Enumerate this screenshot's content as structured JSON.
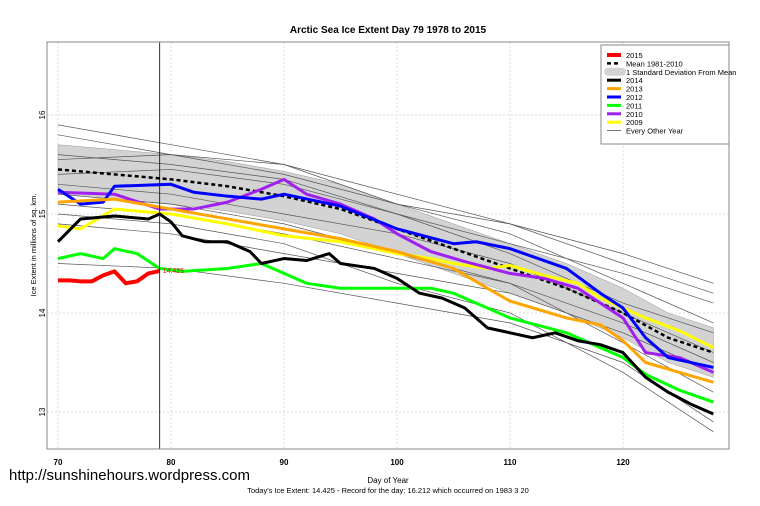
{
  "chart_data": {
    "type": "line",
    "title": "Arctic Sea Ice Extent Day 79 1978 to 2015",
    "xlabel": "Day of Year",
    "ylabel": "Ice Extent in millions of sq. km.",
    "subtitle": "Today's Ice Extent: 14.425  - Record for the day: 16.212 which occurred on 1983 3 20",
    "xlim": [
      69,
      129
    ],
    "ylim": [
      12.7,
      16.7
    ],
    "xticks": [
      70,
      80,
      90,
      100,
      110,
      120
    ],
    "yticks": [
      13,
      14,
      15,
      16
    ],
    "grid": true,
    "legend_position": "top-right",
    "marker_day": 79,
    "annotation": "14.425",
    "sd_band": {
      "name": "1 Standard Deviation From Mean",
      "color": "#d3d3d3",
      "halfwidth": 0.25
    },
    "mean": {
      "name": "Mean 1981-2010",
      "color": "#000000",
      "x": [
        70,
        75,
        80,
        85,
        90,
        95,
        100,
        105,
        110,
        115,
        120,
        124,
        128
      ],
      "y": [
        15.45,
        15.4,
        15.35,
        15.28,
        15.18,
        15.05,
        14.85,
        14.65,
        14.45,
        14.25,
        14.0,
        13.75,
        13.6
      ]
    },
    "other_years_name": "Every Other Year",
    "other_years": [
      {
        "x": [
          70,
          80,
          90,
          100,
          110,
          120,
          128
        ],
        "y": [
          15.55,
          15.6,
          15.5,
          15.2,
          14.9,
          14.6,
          14.3
        ]
      },
      {
        "x": [
          70,
          80,
          90,
          100,
          110,
          120,
          128
        ],
        "y": [
          15.4,
          15.45,
          15.3,
          15.0,
          14.7,
          14.4,
          14.1
        ]
      },
      {
        "x": [
          70,
          80,
          90,
          100,
          110,
          120,
          128
        ],
        "y": [
          15.9,
          15.7,
          15.5,
          15.1,
          14.8,
          14.3,
          13.9
        ]
      },
      {
        "x": [
          70,
          80,
          90,
          100,
          110,
          120,
          128
        ],
        "y": [
          15.3,
          15.2,
          15.0,
          14.8,
          14.5,
          14.0,
          13.6
        ]
      },
      {
        "x": [
          70,
          80,
          90,
          100,
          110,
          120,
          128
        ],
        "y": [
          15.1,
          15.0,
          14.8,
          14.55,
          14.3,
          13.9,
          13.5
        ]
      },
      {
        "x": [
          70,
          80,
          90,
          100,
          110,
          120,
          128
        ],
        "y": [
          15.6,
          15.5,
          15.35,
          15.0,
          14.6,
          14.1,
          13.8
        ]
      },
      {
        "x": [
          70,
          80,
          90,
          100,
          110,
          120,
          128
        ],
        "y": [
          14.9,
          14.8,
          14.6,
          14.4,
          14.2,
          13.8,
          13.4
        ]
      },
      {
        "x": [
          70,
          80,
          90,
          100,
          110,
          120,
          128
        ],
        "y": [
          14.5,
          14.45,
          14.3,
          14.1,
          13.9,
          13.5,
          12.9
        ]
      },
      {
        "x": [
          70,
          80,
          90,
          100,
          110,
          120,
          128
        ],
        "y": [
          15.2,
          15.1,
          14.9,
          14.6,
          14.3,
          13.7,
          13.2
        ]
      },
      {
        "x": [
          70,
          80,
          90,
          100,
          110,
          120,
          128
        ],
        "y": [
          15.8,
          15.6,
          15.4,
          15.1,
          14.9,
          14.5,
          14.2
        ]
      },
      {
        "x": [
          70,
          80,
          90,
          100,
          110,
          120,
          128
        ],
        "y": [
          15.0,
          14.9,
          14.7,
          14.3,
          14.0,
          13.4,
          12.8
        ]
      }
    ],
    "series": [
      {
        "name": "2015",
        "color": "#ff0000",
        "width": 4,
        "x": [
          70,
          71,
          72,
          73,
          74,
          75,
          76,
          77,
          78,
          79
        ],
        "y": [
          14.33,
          14.33,
          14.32,
          14.32,
          14.38,
          14.42,
          14.3,
          14.32,
          14.4,
          14.425
        ]
      },
      {
        "name": "2014",
        "color": "#000000",
        "width": 3,
        "x": [
          70,
          72,
          75,
          78,
          79,
          80,
          81,
          83,
          85,
          87,
          88,
          90,
          92,
          94,
          95,
          98,
          100,
          102,
          104,
          106,
          108,
          110,
          112,
          114,
          116,
          118,
          120,
          122,
          124,
          126,
          128
        ],
        "y": [
          14.72,
          14.95,
          14.98,
          14.95,
          15.0,
          14.92,
          14.78,
          14.72,
          14.72,
          14.62,
          14.5,
          14.55,
          14.53,
          14.6,
          14.5,
          14.45,
          14.35,
          14.2,
          14.15,
          14.05,
          13.85,
          13.8,
          13.75,
          13.8,
          13.72,
          13.68,
          13.6,
          13.35,
          13.2,
          13.08,
          12.98
        ]
      },
      {
        "name": "2013",
        "color": "#ffa500",
        "width": 3,
        "x": [
          70,
          75,
          80,
          85,
          90,
          95,
          100,
          105,
          108,
          110,
          115,
          118,
          120,
          122,
          125,
          128
        ],
        "y": [
          15.12,
          15.15,
          15.05,
          14.95,
          14.85,
          14.75,
          14.62,
          14.45,
          14.25,
          14.12,
          13.95,
          13.88,
          13.72,
          13.5,
          13.4,
          13.3
        ]
      },
      {
        "name": "2012",
        "color": "#0000ff",
        "width": 3,
        "x": [
          70,
          72,
          74,
          75,
          80,
          82,
          85,
          88,
          90,
          95,
          100,
          105,
          107,
          110,
          115,
          118,
          120,
          122,
          124,
          128
        ],
        "y": [
          15.25,
          15.1,
          15.12,
          15.28,
          15.3,
          15.22,
          15.18,
          15.15,
          15.2,
          15.08,
          14.85,
          14.7,
          14.72,
          14.65,
          14.45,
          14.2,
          14.05,
          13.75,
          13.55,
          13.45
        ]
      },
      {
        "name": "2011",
        "color": "#00ff00",
        "width": 3,
        "x": [
          70,
          72,
          74,
          75,
          77,
          79,
          81,
          85,
          88,
          92,
          95,
          100,
          103,
          105,
          108,
          110,
          115,
          118,
          120,
          122,
          125,
          128
        ],
        "y": [
          14.55,
          14.6,
          14.55,
          14.65,
          14.6,
          14.45,
          14.42,
          14.45,
          14.5,
          14.3,
          14.25,
          14.25,
          14.25,
          14.2,
          14.05,
          13.95,
          13.8,
          13.65,
          13.55,
          13.38,
          13.22,
          13.1
        ]
      },
      {
        "name": "2010",
        "color": "#a020f0",
        "width": 3,
        "x": [
          70,
          75,
          79,
          82,
          85,
          88,
          90,
          92,
          95,
          98,
          100,
          103,
          106,
          110,
          113,
          116,
          118,
          120,
          122,
          125,
          128
        ],
        "y": [
          15.22,
          15.2,
          15.05,
          15.05,
          15.12,
          15.25,
          15.35,
          15.2,
          15.1,
          14.95,
          14.8,
          14.62,
          14.52,
          14.4,
          14.35,
          14.25,
          14.1,
          13.95,
          13.6,
          13.55,
          13.4
        ]
      },
      {
        "name": "2009",
        "color": "#ffff00",
        "width": 3,
        "x": [
          70,
          72,
          75,
          78,
          80,
          85,
          90,
          95,
          100,
          103,
          105,
          108,
          110,
          113,
          116,
          118,
          120,
          122,
          125,
          128
        ],
        "y": [
          14.88,
          14.85,
          15.05,
          15.02,
          15.0,
          14.9,
          14.78,
          14.72,
          14.6,
          14.55,
          14.5,
          14.45,
          14.48,
          14.38,
          14.3,
          14.15,
          14.05,
          13.95,
          13.82,
          13.65
        ]
      }
    ]
  },
  "footer": {
    "url": "http://sunshinehours.wordpress.com"
  }
}
